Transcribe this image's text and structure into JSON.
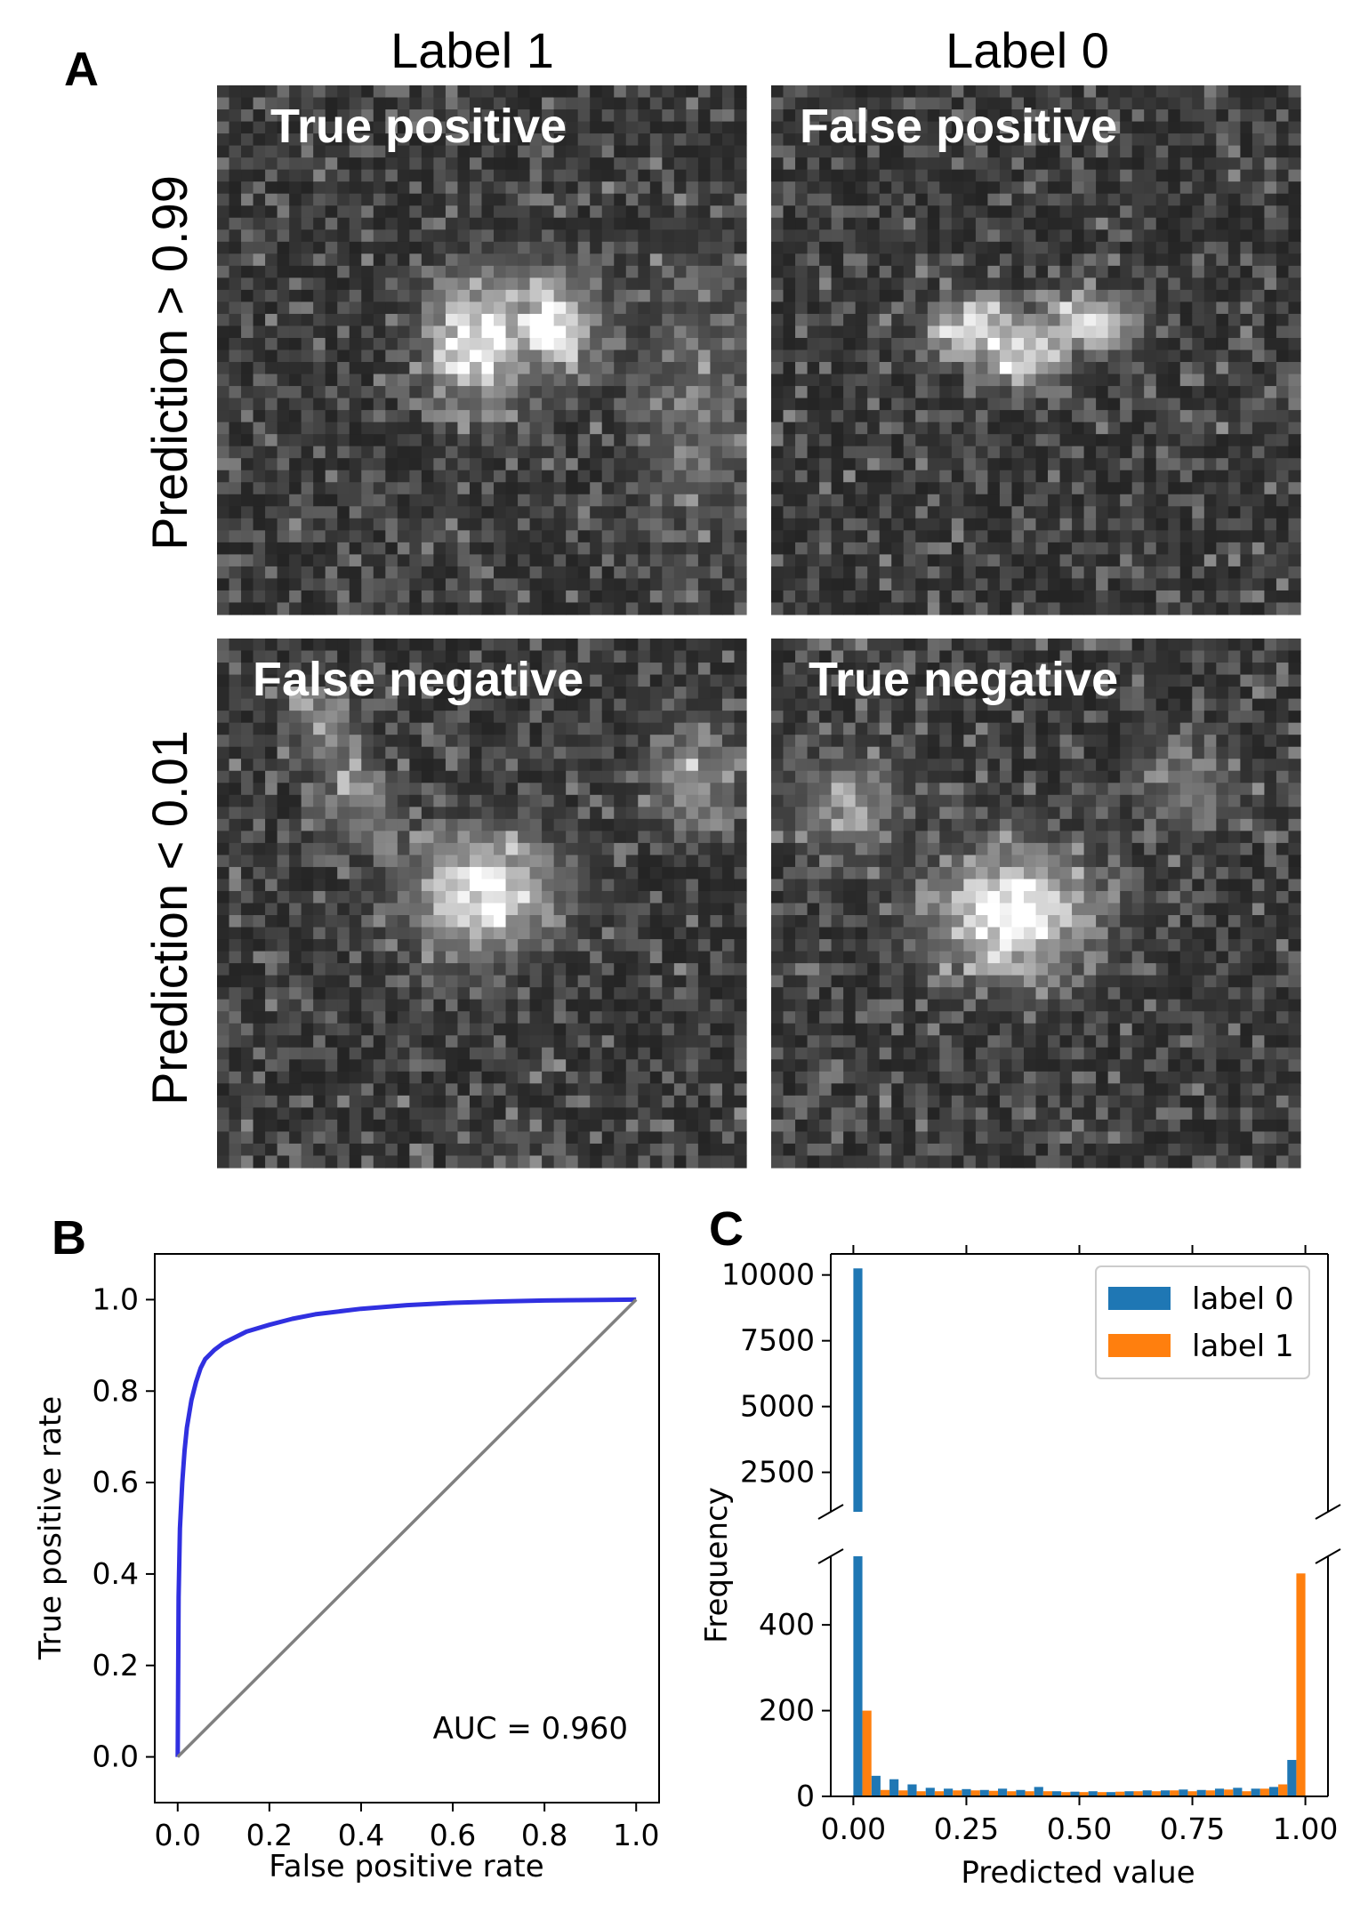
{
  "panel_a": {
    "letter": "A",
    "columns": [
      "Label 1",
      "Label 0"
    ],
    "rows": [
      "Prediction > 0.99",
      "Prediction < 0.01"
    ],
    "images": [
      {
        "label": "True positive",
        "blob": "two-lobe"
      },
      {
        "label": "False positive",
        "blob": "v-shape"
      },
      {
        "label": "False negative",
        "blob": "oval-with-arms"
      },
      {
        "label": "True negative",
        "blob": "round-with-arms"
      }
    ]
  },
  "chart_data": [
    {
      "panel": "B",
      "type": "line",
      "xlabel": "False positive rate",
      "ylabel": "True positive rate",
      "xlim": [
        -0.05,
        1.05
      ],
      "ylim": [
        -0.1,
        1.1
      ],
      "xticks": [
        0.0,
        0.2,
        0.4,
        0.6,
        0.8,
        1.0
      ],
      "yticks": [
        0.0,
        0.2,
        0.4,
        0.6,
        0.8,
        1.0
      ],
      "annotation": "AUC = 0.960",
      "series": [
        {
          "color": "#3030e0",
          "x": [
            0,
            0.002,
            0.005,
            0.01,
            0.015,
            0.02,
            0.03,
            0.04,
            0.05,
            0.06,
            0.08,
            0.1,
            0.12,
            0.15,
            0.2,
            0.25,
            0.3,
            0.4,
            0.5,
            0.6,
            0.7,
            0.8,
            0.9,
            1.0
          ],
          "y": [
            0,
            0.35,
            0.5,
            0.6,
            0.67,
            0.72,
            0.78,
            0.82,
            0.85,
            0.87,
            0.89,
            0.905,
            0.915,
            0.93,
            0.945,
            0.958,
            0.968,
            0.98,
            0.988,
            0.993,
            0.996,
            0.998,
            0.999,
            1.0
          ]
        },
        {
          "color": "#808080",
          "x": [
            0,
            1
          ],
          "y": [
            0,
            1
          ]
        }
      ],
      "grid": false
    },
    {
      "panel": "C",
      "type": "bar",
      "xlabel": "Predicted value",
      "ylabel": "Frequency",
      "xticks": [
        0.0,
        0.25,
        0.5,
        0.75,
        1.0
      ],
      "xtick_labels": [
        "0.00",
        "0.25",
        "0.50",
        "0.75",
        "1.00"
      ],
      "broken_y_axis": true,
      "upper_ylim": [
        1000,
        10800
      ],
      "upper_yticks": [
        2500,
        5000,
        7500,
        10000
      ],
      "lower_ylim": [
        0,
        560
      ],
      "lower_yticks": [
        0,
        200,
        400
      ],
      "bins": 25,
      "bin_width": 0.04,
      "legend_position": "top-right",
      "series": [
        {
          "name": "label 0",
          "color": "#1f77b4",
          "values": [
            10250,
            48,
            40,
            28,
            20,
            18,
            17,
            15,
            18,
            15,
            22,
            12,
            11,
            12,
            10,
            12,
            14,
            14,
            16,
            15,
            18,
            20,
            18,
            22,
            85
          ]
        },
        {
          "name": "label 1",
          "color": "#ff7f0e",
          "values": [
            200,
            15,
            14,
            12,
            12,
            14,
            14,
            13,
            12,
            12,
            12,
            10,
            10,
            10,
            11,
            12,
            12,
            14,
            12,
            14,
            16,
            12,
            18,
            28,
            520
          ]
        }
      ]
    }
  ]
}
